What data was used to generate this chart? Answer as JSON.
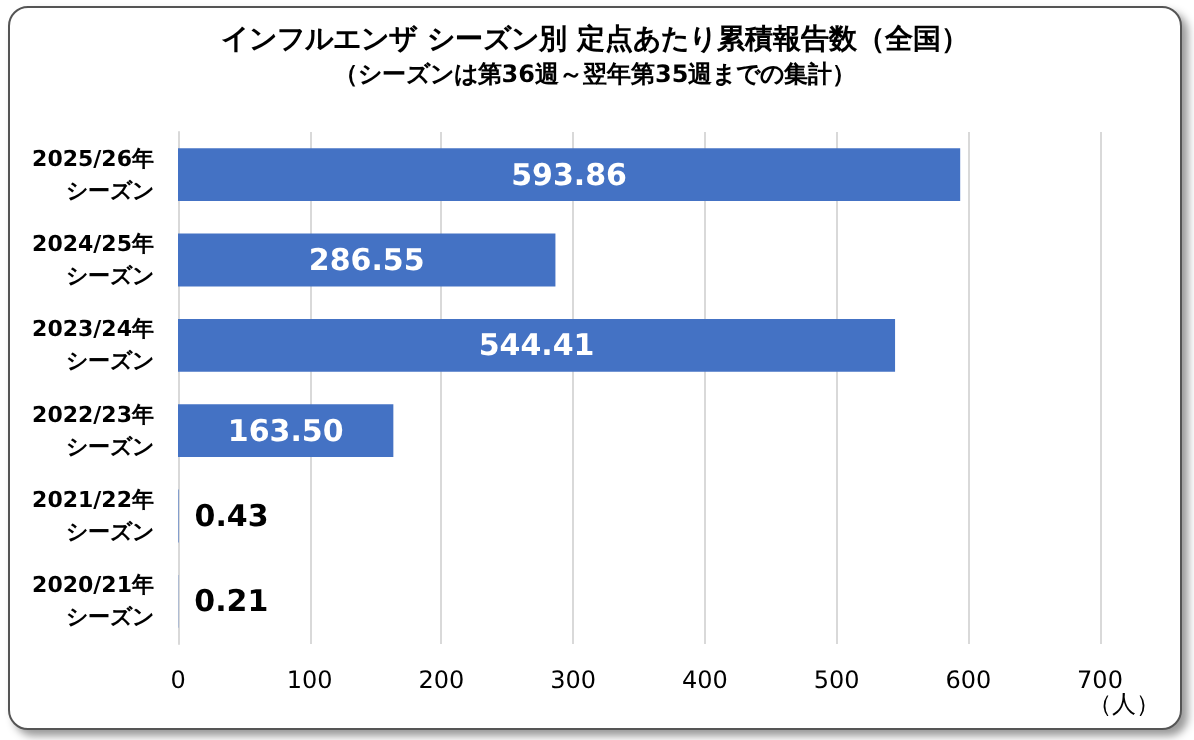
{
  "chart_data": {
    "type": "bar",
    "orientation": "horizontal",
    "title": "インフルエンザ シーズン別 定点あたり累積報告数（全国）",
    "subtitle": "（シーズンは第36週～翌年第35週までの集計）",
    "xlabel": "（人）",
    "categories": [
      "2025/26年シーズン",
      "2024/25年シーズン",
      "2023/24年シーズン",
      "2022/23年シーズン",
      "2021/22年シーズン",
      "2020/21年シーズン"
    ],
    "values": [
      593.86,
      286.55,
      544.41,
      163.5,
      0.43,
      0.21
    ],
    "value_labels": [
      "593.86",
      "286.55",
      "544.41",
      "163.50",
      "0.43",
      "0.21"
    ],
    "color": "#4472c4",
    "xlim": [
      0,
      700
    ],
    "xticks": [
      0,
      100,
      200,
      300,
      400,
      500,
      600,
      700
    ],
    "grid": "x"
  }
}
